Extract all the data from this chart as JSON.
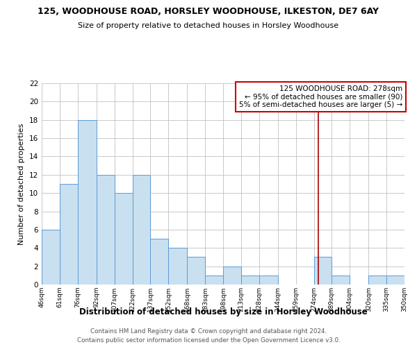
{
  "title": "125, WOODHOUSE ROAD, HORSLEY WOODHOUSE, ILKESTON, DE7 6AY",
  "subtitle": "Size of property relative to detached houses in Horsley Woodhouse",
  "xlabel": "Distribution of detached houses by size in Horsley Woodhouse",
  "ylabel": "Number of detached properties",
  "bar_edges": [
    46,
    61,
    76,
    92,
    107,
    122,
    137,
    152,
    168,
    183,
    198,
    213,
    228,
    244,
    259,
    274,
    289,
    304,
    320,
    335,
    350
  ],
  "bar_heights": [
    6,
    11,
    18,
    12,
    10,
    12,
    5,
    4,
    3,
    1,
    2,
    1,
    1,
    0,
    0,
    3,
    1,
    0,
    1,
    1
  ],
  "bar_color": "#c9e0f0",
  "bar_edgecolor": "#5b9bd5",
  "grid_color": "#c0c0c0",
  "vline_x": 278,
  "vline_color": "#aa0000",
  "ylim": [
    0,
    22
  ],
  "yticks": [
    0,
    2,
    4,
    6,
    8,
    10,
    12,
    14,
    16,
    18,
    20,
    22
  ],
  "tick_labels": [
    "46sqm",
    "61sqm",
    "76sqm",
    "92sqm",
    "107sqm",
    "122sqm",
    "137sqm",
    "152sqm",
    "168sqm",
    "183sqm",
    "198sqm",
    "213sqm",
    "228sqm",
    "244sqm",
    "259sqm",
    "274sqm",
    "289sqm",
    "304sqm",
    "320sqm",
    "335sqm",
    "350sqm"
  ],
  "annotation_box_text": "125 WOODHOUSE ROAD: 278sqm\n← 95% of detached houses are smaller (90)\n5% of semi-detached houses are larger (5) →",
  "annotation_box_color": "#cc0000",
  "annotation_box_facecolor": "white",
  "footer_line1": "Contains HM Land Registry data © Crown copyright and database right 2024.",
  "footer_line2": "Contains public sector information licensed under the Open Government Licence v3.0.",
  "bg_color": "white"
}
